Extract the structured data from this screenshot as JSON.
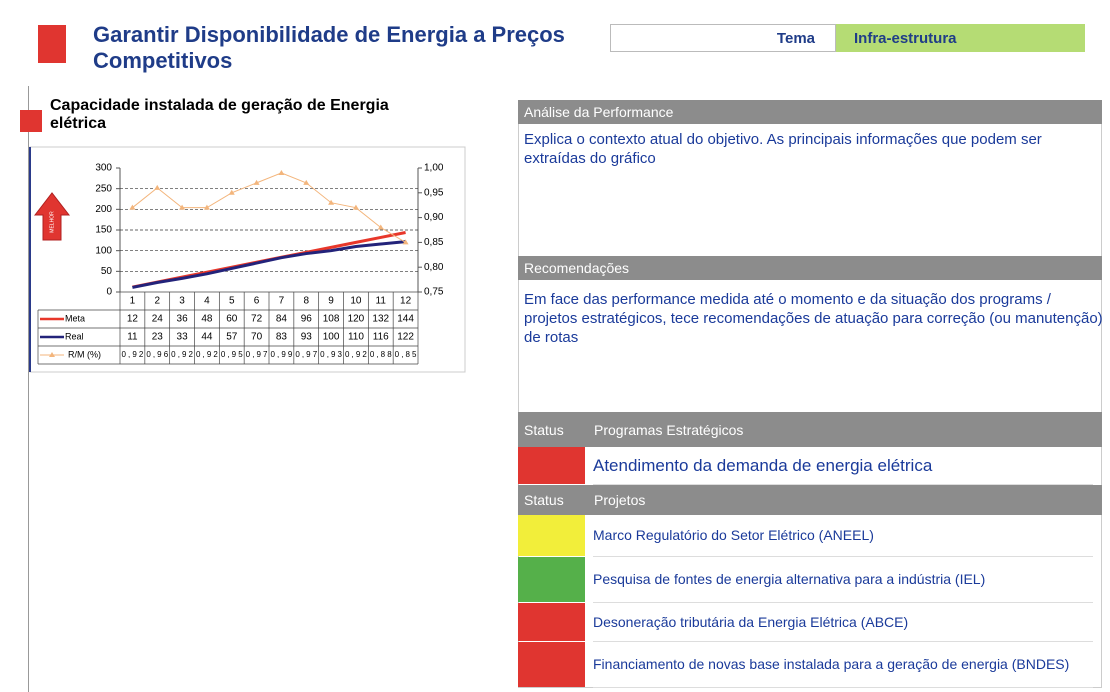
{
  "header": {
    "title": "Garantir Disponibilidade de Energia a Preços Competitivos",
    "theme_label": "Tema",
    "theme": "Infra-estrutura"
  },
  "chart_title": "Capacidade instalada de geração de Energia elétrica",
  "chart_data": {
    "type": "line",
    "categories": [
      "1",
      "2",
      "3",
      "4",
      "5",
      "6",
      "7",
      "8",
      "9",
      "10",
      "11",
      "12"
    ],
    "series": [
      {
        "name": "Meta",
        "color": "#e8372a",
        "values": [
          12,
          24,
          36,
          48,
          60,
          72,
          84,
          96,
          108,
          120,
          132,
          144
        ]
      },
      {
        "name": "Real",
        "color": "#23237a",
        "values": [
          11,
          23,
          33,
          44,
          57,
          70,
          83,
          93,
          100,
          110,
          116,
          122
        ]
      },
      {
        "name": "R/M (%)",
        "color": "#f3b57c",
        "axis": "y2",
        "values": [
          0.92,
          0.96,
          0.92,
          0.92,
          0.95,
          0.97,
          0.99,
          0.97,
          0.93,
          0.92,
          0.88,
          0.85
        ],
        "value_labels": [
          "0,92",
          "0,96",
          "0,92",
          "0,92",
          "0,95",
          "0,97",
          "0,99",
          "0,97",
          "0,93",
          "0,92",
          "0,88",
          "0,85"
        ]
      }
    ],
    "ylim": [
      0,
      300
    ],
    "yticks": [
      0,
      50,
      100,
      150,
      200,
      250,
      300
    ],
    "y2lim": [
      0.75,
      1.0
    ],
    "y2ticks": [
      {
        "value": 0.75,
        "label": "0,75"
      },
      {
        "value": 0.8,
        "label": "0,80"
      },
      {
        "value": 0.85,
        "label": "0,85"
      },
      {
        "value": 0.9,
        "label": "0,90"
      },
      {
        "value": 0.95,
        "label": "0,95"
      },
      {
        "value": 1.0,
        "label": "1,00"
      }
    ],
    "grid": true,
    "annotations": [
      "MELHOR"
    ]
  },
  "analysis": {
    "title": "Análise da Performance",
    "text": "Explica o contexto atual do objetivo. As principais informações que podem ser extraídas do gráfico"
  },
  "recommendations": {
    "title": "Recomendações",
    "text": "Em face das performance medida até o momento e da situação dos programs / projetos estratégicos, tece recomendações de atuação para correção (ou manutenção) de rotas"
  },
  "programs": {
    "status_label": "Status",
    "title": "Programas Estratégicos",
    "items": [
      {
        "label": "Atendimento da demanda de energia elétrica",
        "status_color": "#e03530"
      }
    ]
  },
  "projects": {
    "status_label": "Status",
    "title": "Projetos",
    "items": [
      {
        "label": "Marco Regulatório do Setor Elétrico (ANEEL)",
        "status_color": "#f2ee3a"
      },
      {
        "label": "Pesquisa de fontes de energia alternativa para a indústria (IEL)",
        "status_color": "#55b04a"
      },
      {
        "label": "Desoneração tributária da Energia Elétrica (ABCE)",
        "status_color": "#e03530"
      },
      {
        "label": "Financiamento de novas base instalada para a geração de energia (BNDES)",
        "status_color": "#e03530"
      }
    ]
  }
}
